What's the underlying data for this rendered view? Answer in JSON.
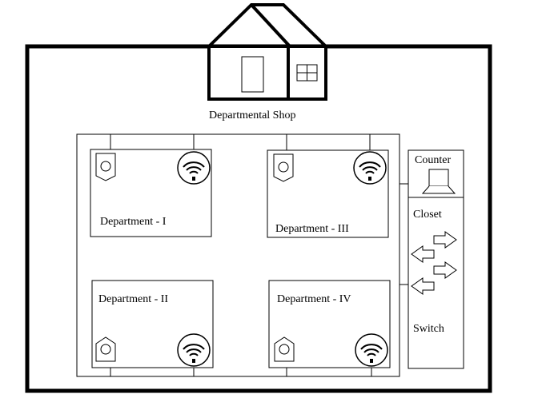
{
  "title": "Departmental Shop",
  "departments": [
    {
      "id": "dept-1",
      "label": "Department - I"
    },
    {
      "id": "dept-2",
      "label": "Department - II"
    },
    {
      "id": "dept-3",
      "label": "Department - III"
    },
    {
      "id": "dept-4",
      "label": "Department - IV"
    }
  ],
  "counter_label": "Counter",
  "closet_label": "Closet",
  "switch_label": "Switch",
  "icons": {
    "camera": "security-camera-icon",
    "wifi": "wifi-router-icon",
    "laptop": "laptop-icon",
    "arrows": "data-flow-arrow-icon",
    "house": "shop-building-icon"
  },
  "colors": {
    "stroke": "#000000",
    "background": "#ffffff"
  }
}
